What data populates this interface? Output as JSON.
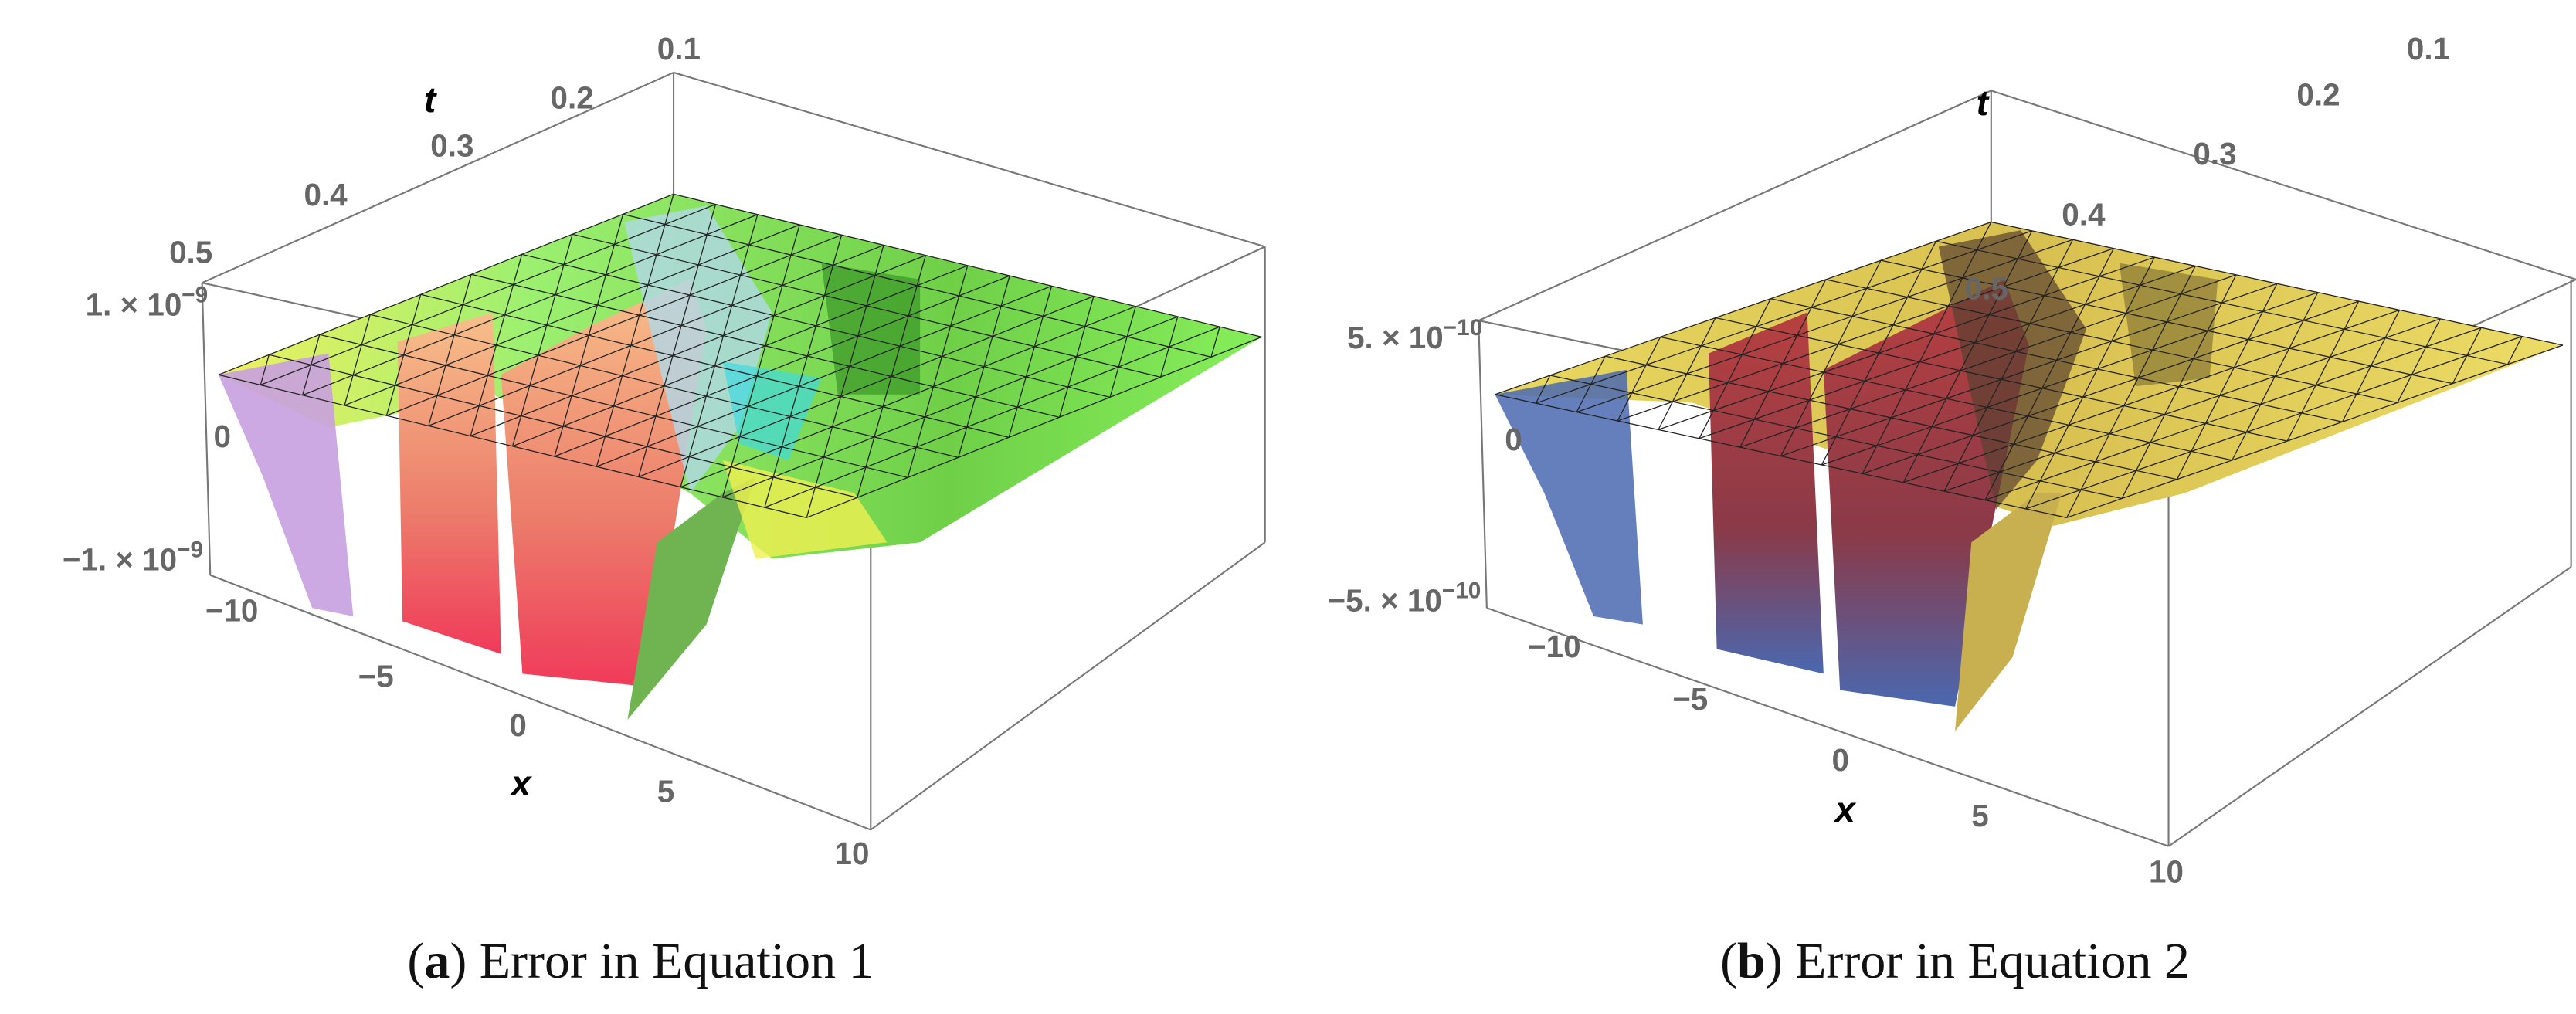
{
  "chart_data": [
    {
      "type": "surface",
      "panel_label": "a",
      "caption": "Error in Equation 1",
      "xlabel": "x",
      "ylabel": "t",
      "x_ticks": [
        "−10",
        "−5",
        "0",
        "5",
        "10"
      ],
      "t_ticks": [
        "0.1",
        "0.2",
        "0.3",
        "0.4",
        "0.5"
      ],
      "z_ticks": [
        "1. × 10",
        "0",
        "−1. × 10"
      ],
      "z_tick_exponent": "−9",
      "xlim": [
        -10,
        10
      ],
      "tlim": [
        0.1,
        0.5
      ],
      "zlim": [
        -1.5e-09,
        1.2e-09
      ],
      "colors": {
        "plane": "#8cf060",
        "walls": "#f08a70",
        "accent": "#40d8e0"
      }
    },
    {
      "type": "surface",
      "panel_label": "b",
      "caption": "Error in Equation 2",
      "xlabel": "x",
      "ylabel": "t",
      "x_ticks": [
        "−10",
        "−5",
        "0",
        "5",
        "10"
      ],
      "t_ticks": [
        "0.1",
        "0.2",
        "0.3",
        "0.4",
        "0.5"
      ],
      "z_ticks": [
        "5. × 10",
        "0",
        "−5. × 10"
      ],
      "z_tick_exponent": "−10",
      "xlim": [
        -10,
        10
      ],
      "tlim": [
        0.1,
        0.5
      ],
      "zlim": [
        -8e-10,
        6e-10
      ],
      "colors": {
        "plane": "#ecdc60",
        "walls": "#b03838",
        "accent": "#4a68b0"
      }
    }
  ]
}
